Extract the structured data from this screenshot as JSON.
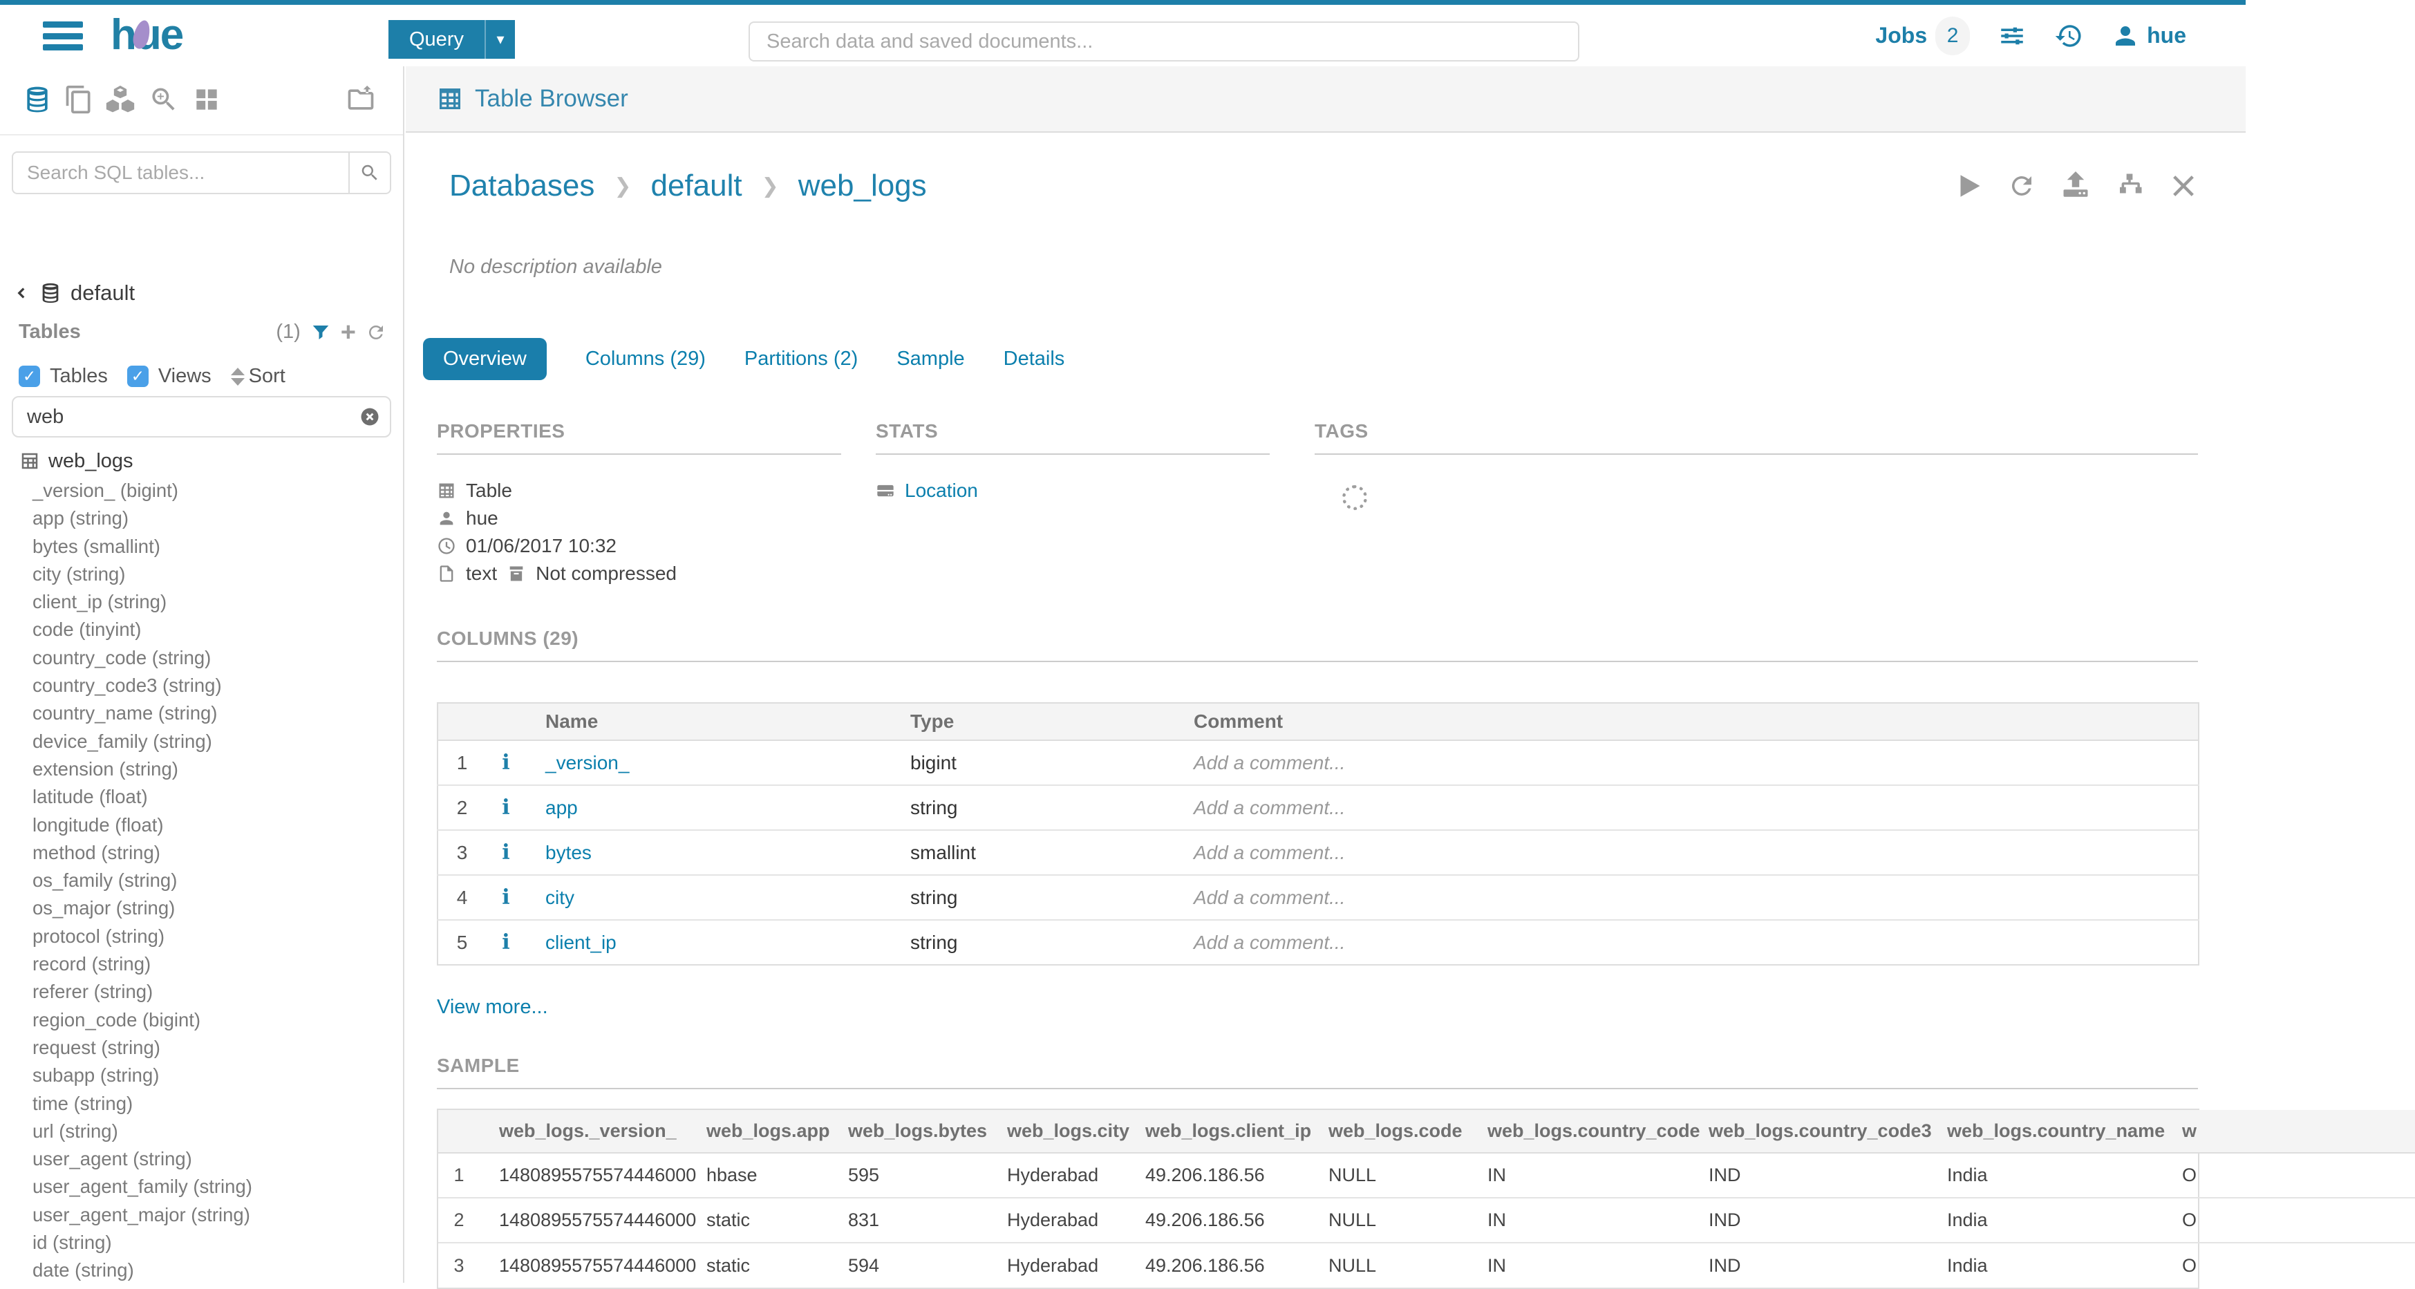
{
  "colors": {
    "accent": "#1d7fa9",
    "link": "#0b7fad",
    "checkbox": "#4aa0e8",
    "active_tab": "#1a7eab"
  },
  "topbar": {
    "logo": "hue",
    "query_button": "Query",
    "search_placeholder": "Search data and saved documents...",
    "jobs_label": "Jobs",
    "jobs_count": "2",
    "username": "hue"
  },
  "sidebar": {
    "search_placeholder": "Search SQL tables...",
    "database": "default",
    "tables_heading": "Tables",
    "tables_count": "(1)",
    "filter_tables_label": "Tables",
    "filter_views_label": "Views",
    "sort_label": "Sort",
    "filter_value": "web",
    "table_name": "web_logs",
    "columns": [
      "_version_ (bigint)",
      "app (string)",
      "bytes (smallint)",
      "city (string)",
      "client_ip (string)",
      "code (tinyint)",
      "country_code (string)",
      "country_code3 (string)",
      "country_name (string)",
      "device_family (string)",
      "extension (string)",
      "latitude (float)",
      "longitude (float)",
      "method (string)",
      "os_family (string)",
      "os_major (string)",
      "protocol (string)",
      "record (string)",
      "referer (string)",
      "region_code (bigint)",
      "request (string)",
      "subapp (string)",
      "time (string)",
      "url (string)",
      "user_agent (string)",
      "user_agent_family (string)",
      "user_agent_major (string)",
      "id (string)",
      "date (string)"
    ]
  },
  "main": {
    "title": "Table Browser",
    "breadcrumb": {
      "root": "Databases",
      "database": "default",
      "table": "web_logs"
    },
    "description": "No description available",
    "tabs": [
      {
        "label": "Overview",
        "active": true
      },
      {
        "label": "Columns (29)",
        "active": false
      },
      {
        "label": "Partitions (2)",
        "active": false
      },
      {
        "label": "Sample",
        "active": false
      },
      {
        "label": "Details",
        "active": false
      }
    ],
    "properties": {
      "heading": "PROPERTIES",
      "object_type": "Table",
      "owner": "hue",
      "created": "01/06/2017 10:32",
      "format": "text",
      "compression": "Not compressed"
    },
    "stats": {
      "heading": "STATS",
      "location_link": "Location"
    },
    "tags": {
      "heading": "TAGS"
    },
    "columns_section": {
      "heading": "COLUMNS (29)",
      "headers": {
        "name": "Name",
        "type": "Type",
        "comment": "Comment"
      },
      "comment_placeholder": "Add a comment...",
      "rows": [
        {
          "num": "1",
          "name": "_version_",
          "type": "bigint"
        },
        {
          "num": "2",
          "name": "app",
          "type": "string"
        },
        {
          "num": "3",
          "name": "bytes",
          "type": "smallint"
        },
        {
          "num": "4",
          "name": "city",
          "type": "string"
        },
        {
          "num": "5",
          "name": "client_ip",
          "type": "string"
        }
      ],
      "view_more": "View more..."
    },
    "sample_section": {
      "heading": "SAMPLE",
      "headers": [
        "web_logs._version_",
        "web_logs.app",
        "web_logs.bytes",
        "web_logs.city",
        "web_logs.client_ip",
        "web_logs.code",
        "web_logs.country_code",
        "web_logs.country_code3",
        "web_logs.country_name",
        "w"
      ],
      "rows": [
        {
          "num": "1",
          "cells": [
            "1480895575574446000",
            "hbase",
            "595",
            "Hyderabad",
            "49.206.186.56",
            "NULL",
            "IN",
            "IND",
            "India",
            "O"
          ]
        },
        {
          "num": "2",
          "cells": [
            "1480895575574446000",
            "static",
            "831",
            "Hyderabad",
            "49.206.186.56",
            "NULL",
            "IN",
            "IND",
            "India",
            "O"
          ]
        },
        {
          "num": "3",
          "cells": [
            "1480895575574446000",
            "static",
            "594",
            "Hyderabad",
            "49.206.186.56",
            "NULL",
            "IN",
            "IND",
            "India",
            "O"
          ]
        }
      ]
    }
  }
}
